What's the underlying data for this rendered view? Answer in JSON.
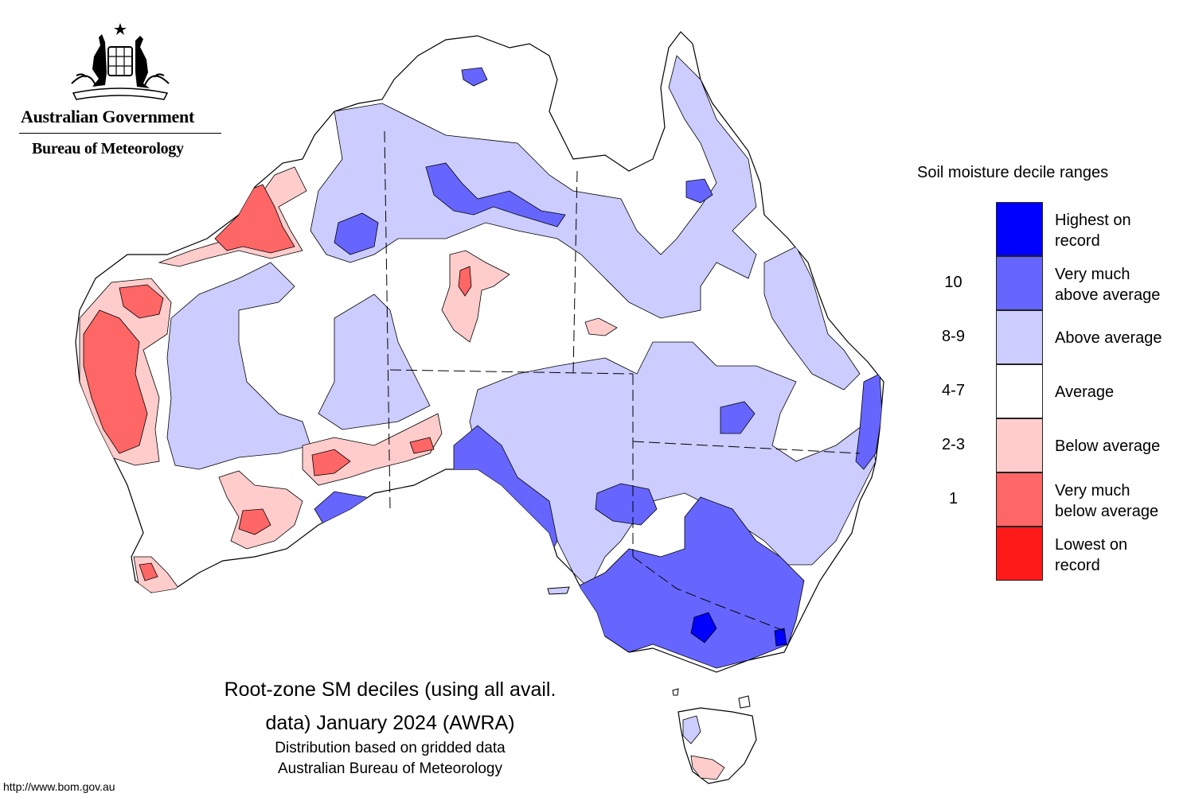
{
  "header": {
    "government": "Australian Government",
    "agency": "Bureau of Meteorology"
  },
  "legend": {
    "title": "Soil moisture decile ranges",
    "items": [
      {
        "range": "",
        "label": "Highest on record",
        "color": "#0000ff"
      },
      {
        "range": "10",
        "label": "Very much above average",
        "color": "#6666ff"
      },
      {
        "range": "8-9",
        "label": "Above average",
        "color": "#ccccff"
      },
      {
        "range": "4-7",
        "label": "Average",
        "color": "#ffffff"
      },
      {
        "range": "2-3",
        "label": "Below average",
        "color": "#ffcccc"
      },
      {
        "range": "1",
        "label": "Very much below average",
        "color": "#ff6666"
      },
      {
        "range": "",
        "label": "Lowest on record",
        "color": "#ff1a1a"
      }
    ]
  },
  "caption": {
    "line1": "Root-zone SM deciles (using all avail.",
    "line2": "data) January 2024 (AWRA)",
    "line3": "Distribution based on gridded data",
    "line4": "Australian Bureau of Meteorology"
  },
  "footer": {
    "url": "http://www.bom.gov.au"
  }
}
